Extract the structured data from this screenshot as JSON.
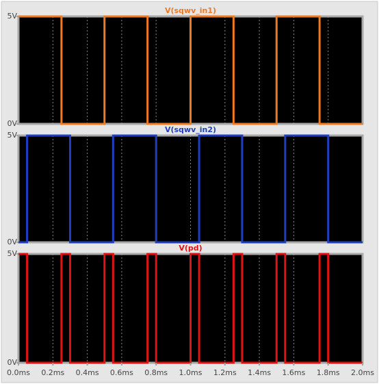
{
  "chart_data": [
    {
      "type": "line",
      "series": [
        {
          "name": "V(sqwv_in1)",
          "color": "#f07a22",
          "x": [
            0,
            0.25,
            0.25,
            0.5,
            0.5,
            0.75,
            0.75,
            1.0,
            1.0,
            1.25,
            1.25,
            1.5,
            1.5,
            1.75,
            1.75,
            2.0
          ],
          "values": [
            5,
            5,
            0,
            0,
            5,
            5,
            0,
            0,
            5,
            5,
            0,
            0,
            5,
            5,
            0,
            0
          ]
        }
      ],
      "ylim": [
        0,
        5
      ],
      "yticks": [
        {
          "value": 0,
          "label": "0V"
        },
        {
          "value": 5,
          "label": "5V"
        }
      ]
    },
    {
      "type": "line",
      "series": [
        {
          "name": "V(sqwv_in2)",
          "color": "#1f3fc0",
          "x": [
            0,
            0.05,
            0.05,
            0.3,
            0.3,
            0.55,
            0.55,
            0.8,
            0.8,
            1.05,
            1.05,
            1.3,
            1.3,
            1.55,
            1.55,
            1.8,
            1.8,
            2.0
          ],
          "values": [
            0,
            0,
            5,
            5,
            0,
            0,
            5,
            5,
            0,
            0,
            5,
            5,
            0,
            0,
            5,
            5,
            0,
            0
          ]
        }
      ],
      "ylim": [
        0,
        5
      ],
      "yticks": [
        {
          "value": 0,
          "label": "0V"
        },
        {
          "value": 5,
          "label": "5V"
        }
      ]
    },
    {
      "type": "line",
      "series": [
        {
          "name": "V(pd)",
          "color": "#e01414",
          "x": [
            0,
            0.05,
            0.05,
            0.25,
            0.25,
            0.3,
            0.3,
            0.5,
            0.5,
            0.55,
            0.55,
            0.75,
            0.75,
            0.8,
            0.8,
            1.0,
            1.0,
            1.05,
            1.05,
            1.25,
            1.25,
            1.3,
            1.3,
            1.5,
            1.5,
            1.55,
            1.55,
            1.75,
            1.75,
            1.8,
            1.8,
            2.0
          ],
          "values": [
            5,
            5,
            0,
            0,
            5,
            5,
            0,
            0,
            5,
            5,
            0,
            0,
            5,
            5,
            0,
            0,
            5,
            5,
            0,
            0,
            5,
            5,
            0,
            0,
            5,
            5,
            0,
            0,
            5,
            5,
            0,
            0
          ]
        }
      ],
      "ylim": [
        0,
        5
      ],
      "yticks": [
        {
          "value": 0,
          "label": "0V"
        },
        {
          "value": 5,
          "label": "5V"
        }
      ],
      "xlim": [
        0,
        2.0
      ],
      "xticks": [
        {
          "value": 0,
          "label": "0.0ms"
        },
        {
          "value": 0.2,
          "label": "0.2ms"
        },
        {
          "value": 0.4,
          "label": "0.4ms"
        },
        {
          "value": 0.6,
          "label": "0.6ms"
        },
        {
          "value": 0.8,
          "label": "0.8ms"
        },
        {
          "value": 1.0,
          "label": "1.0ms"
        },
        {
          "value": 1.2,
          "label": "1.2ms"
        },
        {
          "value": 1.4,
          "label": "1.4ms"
        },
        {
          "value": 1.6,
          "label": "1.6ms"
        },
        {
          "value": 1.8,
          "label": "1.8ms"
        },
        {
          "value": 2.0,
          "label": "2.0ms"
        }
      ],
      "grid": true
    }
  ]
}
